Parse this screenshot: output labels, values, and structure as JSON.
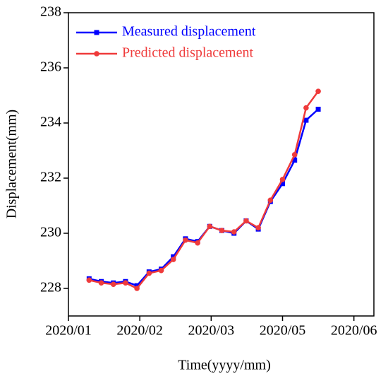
{
  "chart_data": {
    "type": "line",
    "xlabel": "Time(yyyy/mm)",
    "ylabel": "Displacement(mm)",
    "xlim": [
      1,
      5.28
    ],
    "xticks": [
      {
        "value": 1,
        "label": "2020/01"
      },
      {
        "value": 2,
        "label": "2020/02"
      },
      {
        "value": 3,
        "label": "2020/03"
      },
      {
        "value": 4,
        "label": "2020/05"
      },
      {
        "value": 5,
        "label": "2020/06"
      }
    ],
    "ylim": [
      227,
      238
    ],
    "yticks": [
      228,
      230,
      232,
      234,
      236,
      238
    ],
    "legend": "upper left",
    "x": [
      1.29,
      1.46,
      1.63,
      1.8,
      1.96,
      2.13,
      2.3,
      2.47,
      2.64,
      2.81,
      2.98,
      3.15,
      3.32,
      3.49,
      3.66,
      3.83,
      4.0,
      4.17,
      4.33,
      4.5
    ],
    "series": [
      {
        "name": "Measured displacement",
        "color": "#0000ff",
        "marker": "square",
        "values": [
          228.35,
          228.25,
          228.2,
          228.25,
          228.1,
          228.6,
          228.7,
          229.15,
          229.8,
          229.7,
          230.25,
          230.1,
          230.0,
          230.45,
          230.15,
          231.15,
          231.8,
          232.65,
          234.1,
          234.5
        ]
      },
      {
        "name": "Predicted displacement",
        "color": "#ef3b3b",
        "marker": "circle",
        "values": [
          228.3,
          228.2,
          228.15,
          228.2,
          228.0,
          228.55,
          228.65,
          229.05,
          229.75,
          229.65,
          230.25,
          230.1,
          230.05,
          230.45,
          230.2,
          231.2,
          231.95,
          232.85,
          234.55,
          235.15
        ]
      }
    ]
  }
}
